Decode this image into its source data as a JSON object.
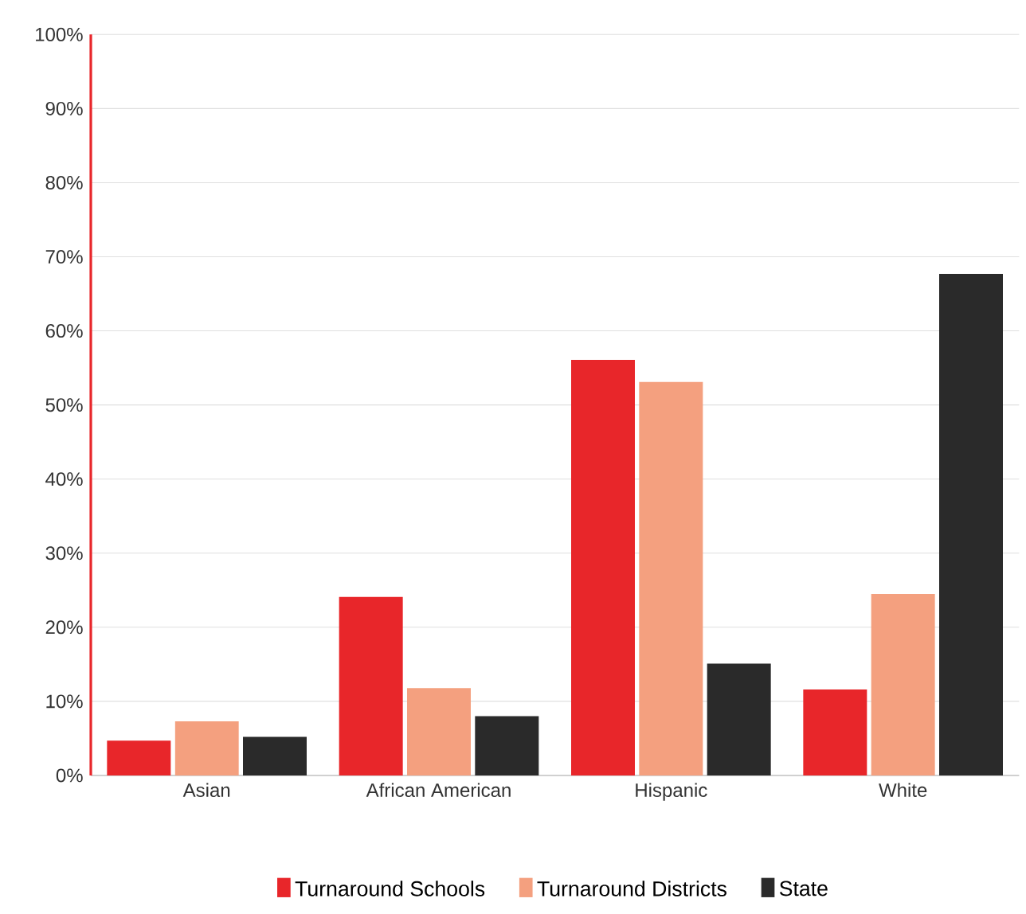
{
  "chart_data": {
    "type": "bar",
    "categories": [
      "Asian",
      "African American",
      "Hispanic",
      "White"
    ],
    "series": [
      {
        "name": "Turnaround Schools",
        "color": "#e8262a",
        "values": [
          4.7,
          24.1,
          56.1,
          11.6
        ]
      },
      {
        "name": "Turnaround Districts",
        "color": "#f4a07f",
        "values": [
          7.3,
          11.8,
          53.1,
          24.5
        ]
      },
      {
        "name": "State",
        "color": "#2a2a2a",
        "values": [
          5.2,
          8.0,
          15.1,
          67.7
        ]
      }
    ],
    "ylim": [
      0,
      100
    ],
    "yticks": [
      {
        "value": 0,
        "label": "0%"
      },
      {
        "value": 10,
        "label": "10%"
      },
      {
        "value": 20,
        "label": "20%"
      },
      {
        "value": 30,
        "label": "30%"
      },
      {
        "value": 40,
        "label": "40%"
      },
      {
        "value": 50,
        "label": "50%"
      },
      {
        "value": 60,
        "label": "60%"
      },
      {
        "value": 70,
        "label": "70%"
      },
      {
        "value": 80,
        "label": "80%"
      },
      {
        "value": 90,
        "label": "90%"
      },
      {
        "value": 100,
        "label": "100%"
      }
    ],
    "grid": "y",
    "legend": "bottom"
  }
}
